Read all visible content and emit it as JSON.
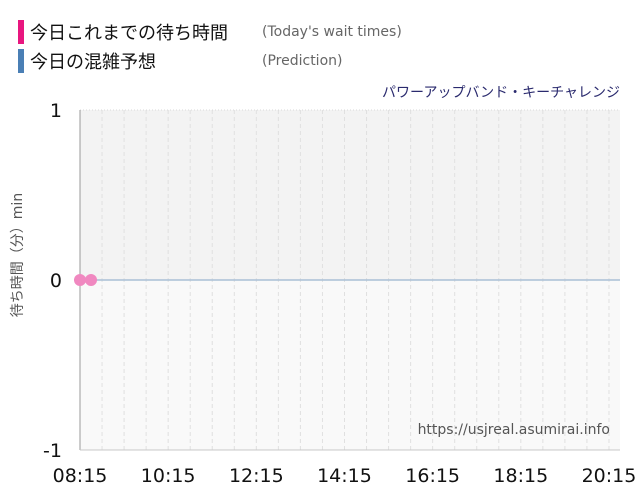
{
  "legend": [
    {
      "label": "今日これまでの待ち時間",
      "sublabel": "(Today's wait times)",
      "color": "#e8167f"
    },
    {
      "label": "今日の混雑予想",
      "sublabel": "(Prediction)",
      "color": "#4a7fb5"
    }
  ],
  "ride_name": "パワーアップバンド・キーチャレンジ",
  "watermark": "https://usjreal.asumirai.info",
  "chart_data": {
    "type": "line",
    "title": "パワーアップバンド・キーチャレンジ",
    "xlabel": "",
    "ylabel": "待ち時間（分）min",
    "x_tick_labels": [
      "08:15",
      "10:15",
      "12:15",
      "14:15",
      "16:15",
      "18:15",
      "20:15"
    ],
    "y_tick_labels": [
      "1",
      "0",
      "-1"
    ],
    "xlim": [
      "08:15",
      "20:30"
    ],
    "ylim": [
      -1,
      1
    ],
    "grid": true,
    "series": [
      {
        "name": "今日これまでの待ち時間",
        "color": "#f088c0",
        "x": [
          "08:15",
          "08:30"
        ],
        "y": [
          0,
          0
        ]
      },
      {
        "name": "今日の混雑予想",
        "color": "#a9bfd6",
        "x": [
          "08:15",
          "20:30"
        ],
        "y": [
          0,
          0
        ]
      }
    ]
  }
}
